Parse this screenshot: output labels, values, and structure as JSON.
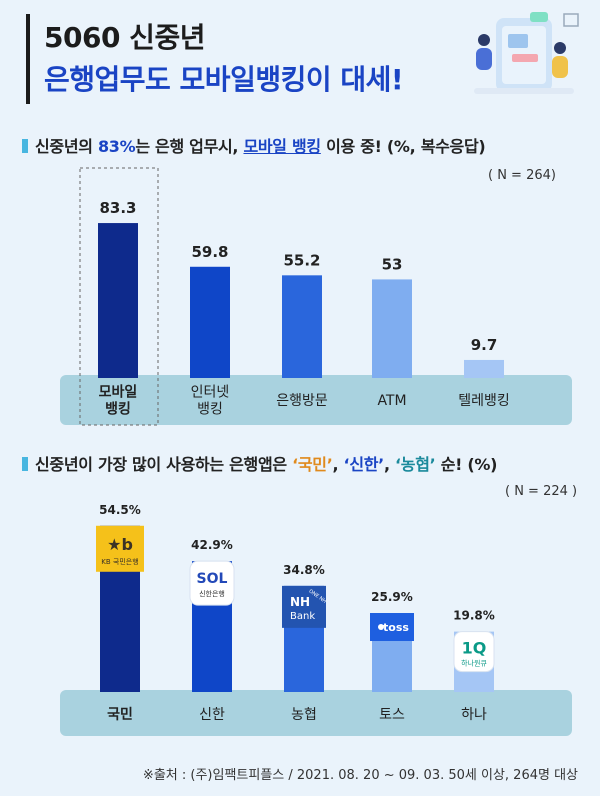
{
  "header": {
    "title_line1": "5060 신중년",
    "title_line2": "은행업무도 모바일뱅킹이 대세!"
  },
  "chart1": {
    "heading": {
      "prefix": "신중년의 ",
      "highlight_pct": "83%",
      "middle": "는 은행 업무시, ",
      "highlight_mobile": "모바일 뱅킹",
      "suffix": " 이용 중! (%, 복수응답)"
    },
    "n_label": "( N = 264)"
  },
  "chart2": {
    "heading": {
      "prefix": "신중년이 가장 많이 사용하는 은행앱은 ",
      "bank1": "‘국민’",
      "sep1": ", ",
      "bank2": "‘신한’",
      "sep2": ", ",
      "bank3": "‘농협’",
      "suffix": " 순! (%)"
    },
    "n_label": "( N = 224 )",
    "logos": {
      "kb_main": "★b",
      "kb_sub": "KB 국민은행",
      "sol_main": "SOL",
      "sol_sub": "신한은행",
      "nh_main": "NH",
      "nh_sub": "Bank",
      "nh_tag": "ONE NH",
      "toss": "toss",
      "hana_main": "1Q",
      "hana_sub": "하나원큐"
    }
  },
  "footer": "※출처 : (주)임팩트피플스 / 2021. 08. 20 ~ 09. 03. 50세 이상, 264명 대상",
  "colors": {
    "bar_dark": "#0e2a8c",
    "bar_mid1": "#0f46c8",
    "bar_mid2": "#2a66dc",
    "bar_light1": "#7fadf0",
    "bar_light2": "#a5c6f5",
    "label_band": "#a9d2df",
    "title_blue": "#1a44c4"
  },
  "chart_data": [
    {
      "type": "bar",
      "categories": [
        "모바일\n뱅킹",
        "인터넷\n뱅킹",
        "은행방문",
        "ATM",
        "텔레뱅킹"
      ],
      "values": [
        83.3,
        59.8,
        55.2,
        53,
        9.7
      ],
      "value_labels": [
        "83.3",
        "59.8",
        "55.2",
        "53",
        "9.7"
      ],
      "ylim": [
        0,
        100
      ]
    },
    {
      "type": "bar",
      "categories": [
        "국민",
        "신한",
        "농협",
        "토스",
        "하나"
      ],
      "values": [
        54.5,
        42.9,
        34.8,
        25.9,
        19.8
      ],
      "value_labels": [
        "54.5%",
        "42.9%",
        "34.8%",
        "25.9%",
        "19.8%"
      ],
      "ylim": [
        0,
        60
      ]
    }
  ]
}
